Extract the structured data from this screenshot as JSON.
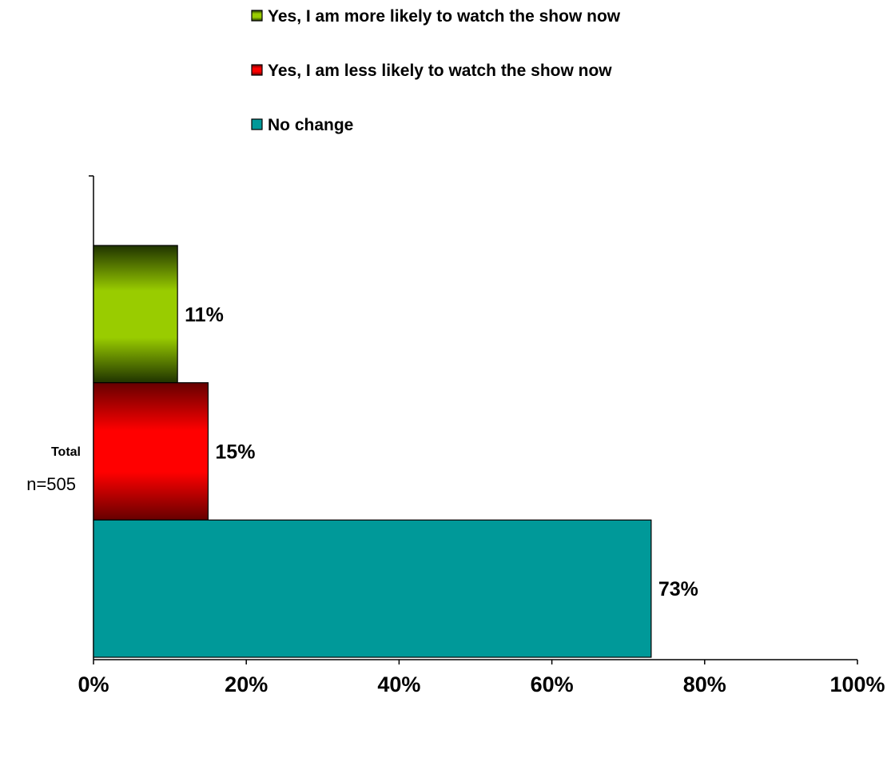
{
  "chart_data": {
    "type": "bar",
    "orientation": "horizontal",
    "categories": [
      "Total"
    ],
    "category_sublabel": "n=505",
    "series": [
      {
        "name": "Yes, I am more likely to watch the show now",
        "values": [
          11
        ],
        "label": "11%",
        "color": "#99cc00"
      },
      {
        "name": "Yes, I am less likely to watch the show now",
        "values": [
          15
        ],
        "label": "15%",
        "color": "#ff0000"
      },
      {
        "name": "No change",
        "values": [
          73
        ],
        "label": "73%",
        "color": "#009999"
      }
    ],
    "xlim": [
      0,
      100
    ],
    "xticks": [
      0,
      20,
      40,
      60,
      80,
      100
    ],
    "xtick_labels": [
      "0%",
      "20%",
      "40%",
      "60%",
      "80%",
      "100%"
    ],
    "legend_position": "top",
    "grid": false
  }
}
